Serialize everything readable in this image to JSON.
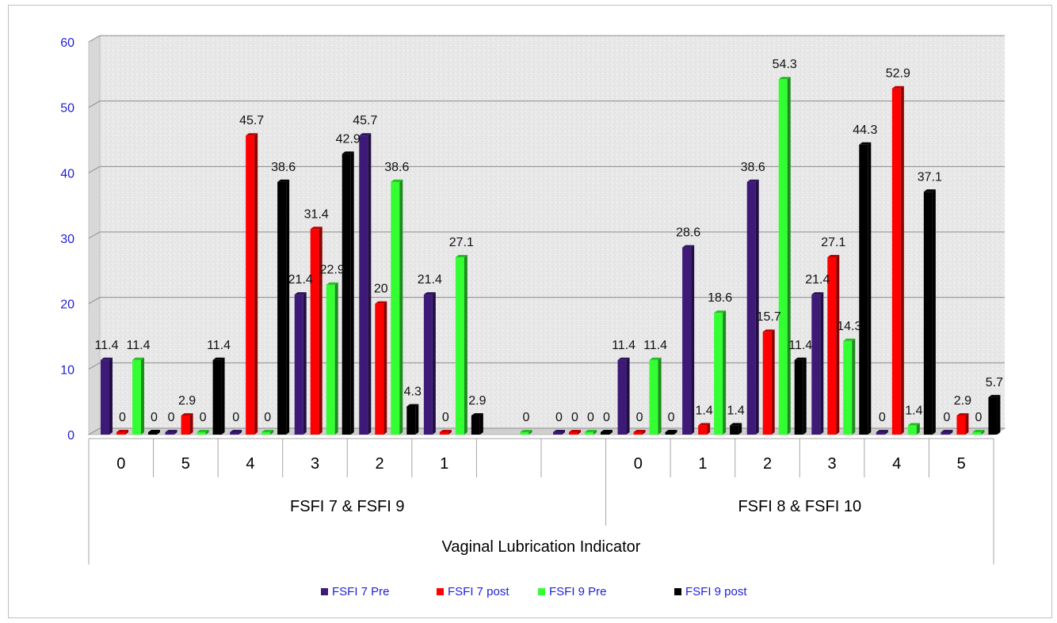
{
  "chart_data": {
    "type": "bar",
    "xlabel": "Vaginal Lubrication Indicator",
    "ylabel": "",
    "ylim": [
      0,
      60
    ],
    "yticks": [
      0,
      10,
      20,
      30,
      40,
      50,
      60
    ],
    "grid": true,
    "legend_position": "bottom",
    "groups": [
      {
        "label": "FSFI 7 & FSFI 9",
        "categories": [
          "0",
          "5",
          "4",
          "3",
          "2",
          "1",
          "",
          ""
        ]
      },
      {
        "label": "FSFI 8 & FSFI 10",
        "categories": [
          "0",
          "1",
          "2",
          "3",
          "4",
          "5"
        ]
      }
    ],
    "series": [
      {
        "name": "FSFI 7 Pre",
        "color": "#3d1a78",
        "values": [
          11.4,
          0,
          0,
          21.4,
          45.7,
          21.4,
          null,
          0,
          11.4,
          28.6,
          38.6,
          21.4,
          0,
          0
        ],
        "labels": [
          "11.4",
          "0",
          "0",
          "21.4",
          "45.7",
          "21.4",
          "",
          "0",
          "11.4",
          "28.6",
          "38.6",
          "21.4",
          "0",
          "0"
        ]
      },
      {
        "name": "FSFI 7 post",
        "color": "#ff0000",
        "values": [
          0,
          2.9,
          45.7,
          31.4,
          20,
          0,
          null,
          0,
          0,
          1.4,
          15.7,
          27.1,
          52.9,
          2.9
        ],
        "labels": [
          "0",
          "2.9",
          "45.7",
          "31.4",
          "20",
          "0",
          "",
          "0",
          "0",
          "1.4",
          "15.7",
          "27.1",
          "52.9",
          "2.9"
        ]
      },
      {
        "name": "FSFI 9 Pre",
        "color": "#33ff33",
        "values": [
          11.4,
          0,
          0,
          22.9,
          38.6,
          27.1,
          0,
          0,
          11.4,
          18.6,
          54.3,
          14.3,
          1.4,
          0
        ],
        "labels": [
          "11.4",
          "0",
          "0",
          "22.9",
          "38.6",
          "27.1",
          "0",
          "0",
          "11.4",
          "18.6",
          "54.3",
          "14.3",
          "1.4",
          "0"
        ]
      },
      {
        "name": "FSFI 9 post",
        "color": "#000000",
        "values": [
          0,
          11.4,
          38.6,
          42.9,
          4.3,
          2.9,
          null,
          0,
          0,
          1.4,
          11.4,
          44.3,
          37.1,
          5.7
        ],
        "labels": [
          "0",
          "11.4",
          "38.6",
          "42.9",
          "4.3",
          "2.9",
          "",
          "0",
          "0",
          "1.4",
          "11.4",
          "44.3",
          "37.1",
          "5.7"
        ]
      }
    ]
  }
}
